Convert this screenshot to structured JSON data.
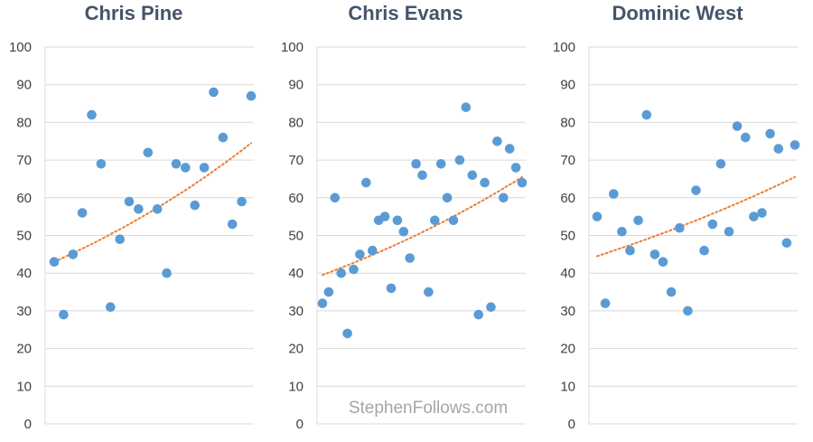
{
  "watermark": "StephenFollows.com",
  "colors": {
    "title": "#44546a",
    "point": "#5b9bd5",
    "trendline": "#ed7d31",
    "gridline": "#d9d9d9",
    "tick_label": "#404040",
    "watermark": "#a6a6a6"
  },
  "chart_data": [
    {
      "type": "scatter",
      "title": "Chris Pine",
      "ylim": [
        0,
        100
      ],
      "y_ticks": [
        0,
        10,
        20,
        30,
        40,
        50,
        60,
        70,
        80,
        90,
        100
      ],
      "grid": true,
      "trendline": {
        "style": "dotted",
        "kind": "exponential",
        "start_value": 43,
        "end_value": 74.5
      },
      "points": [
        43,
        29,
        45,
        56,
        82,
        69,
        31,
        49,
        59,
        57,
        72,
        57,
        40,
        69,
        68,
        58,
        68,
        88,
        76,
        53,
        59,
        87
      ]
    },
    {
      "type": "scatter",
      "title": "Chris Evans",
      "ylim": [
        0,
        100
      ],
      "y_ticks": [
        0,
        10,
        20,
        30,
        40,
        50,
        60,
        70,
        80,
        90,
        100
      ],
      "grid": true,
      "trendline": {
        "style": "dotted",
        "kind": "exponential",
        "start_value": 39.5,
        "end_value": 65.5
      },
      "points": [
        32,
        35,
        60,
        40,
        24,
        41,
        45,
        64,
        46,
        54,
        55,
        36,
        54,
        51,
        44,
        69,
        66,
        35,
        54,
        69,
        60,
        54,
        70,
        84,
        66,
        29,
        64,
        31,
        75,
        60,
        73,
        68,
        64
      ]
    },
    {
      "type": "scatter",
      "title": "Dominic West",
      "ylim": [
        0,
        100
      ],
      "y_ticks": [
        0,
        10,
        20,
        30,
        40,
        50,
        60,
        70,
        80,
        90,
        100
      ],
      "grid": true,
      "trendline": {
        "style": "dotted",
        "kind": "exponential",
        "start_value": 44.5,
        "end_value": 65.5
      },
      "points": [
        55,
        32,
        61,
        51,
        46,
        54,
        82,
        45,
        43,
        35,
        52,
        30,
        62,
        46,
        53,
        69,
        51,
        79,
        76,
        55,
        56,
        77,
        73,
        48,
        74
      ]
    }
  ]
}
